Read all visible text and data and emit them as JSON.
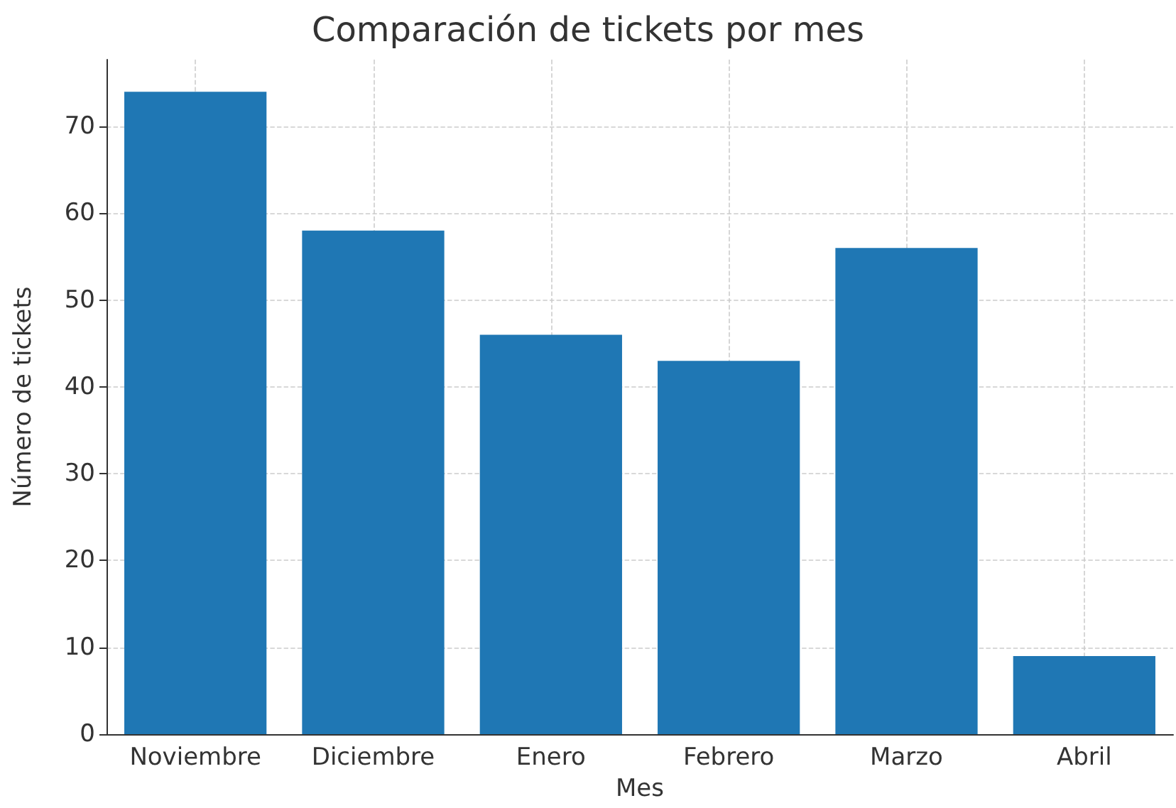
{
  "chart_data": {
    "type": "bar",
    "title": "Comparación de tickets por mes",
    "xlabel": "Mes",
    "ylabel": "Número de tickets",
    "categories": [
      "Noviembre",
      "Diciembre",
      "Enero",
      "Febrero",
      "Marzo",
      "Abril"
    ],
    "values": [
      74,
      58,
      46,
      43,
      56,
      9
    ],
    "color": "#1f77b4",
    "ylim": [
      0,
      77.7
    ],
    "yticks": [
      0,
      10,
      20,
      30,
      40,
      50,
      60,
      70
    ],
    "grid": true
  }
}
